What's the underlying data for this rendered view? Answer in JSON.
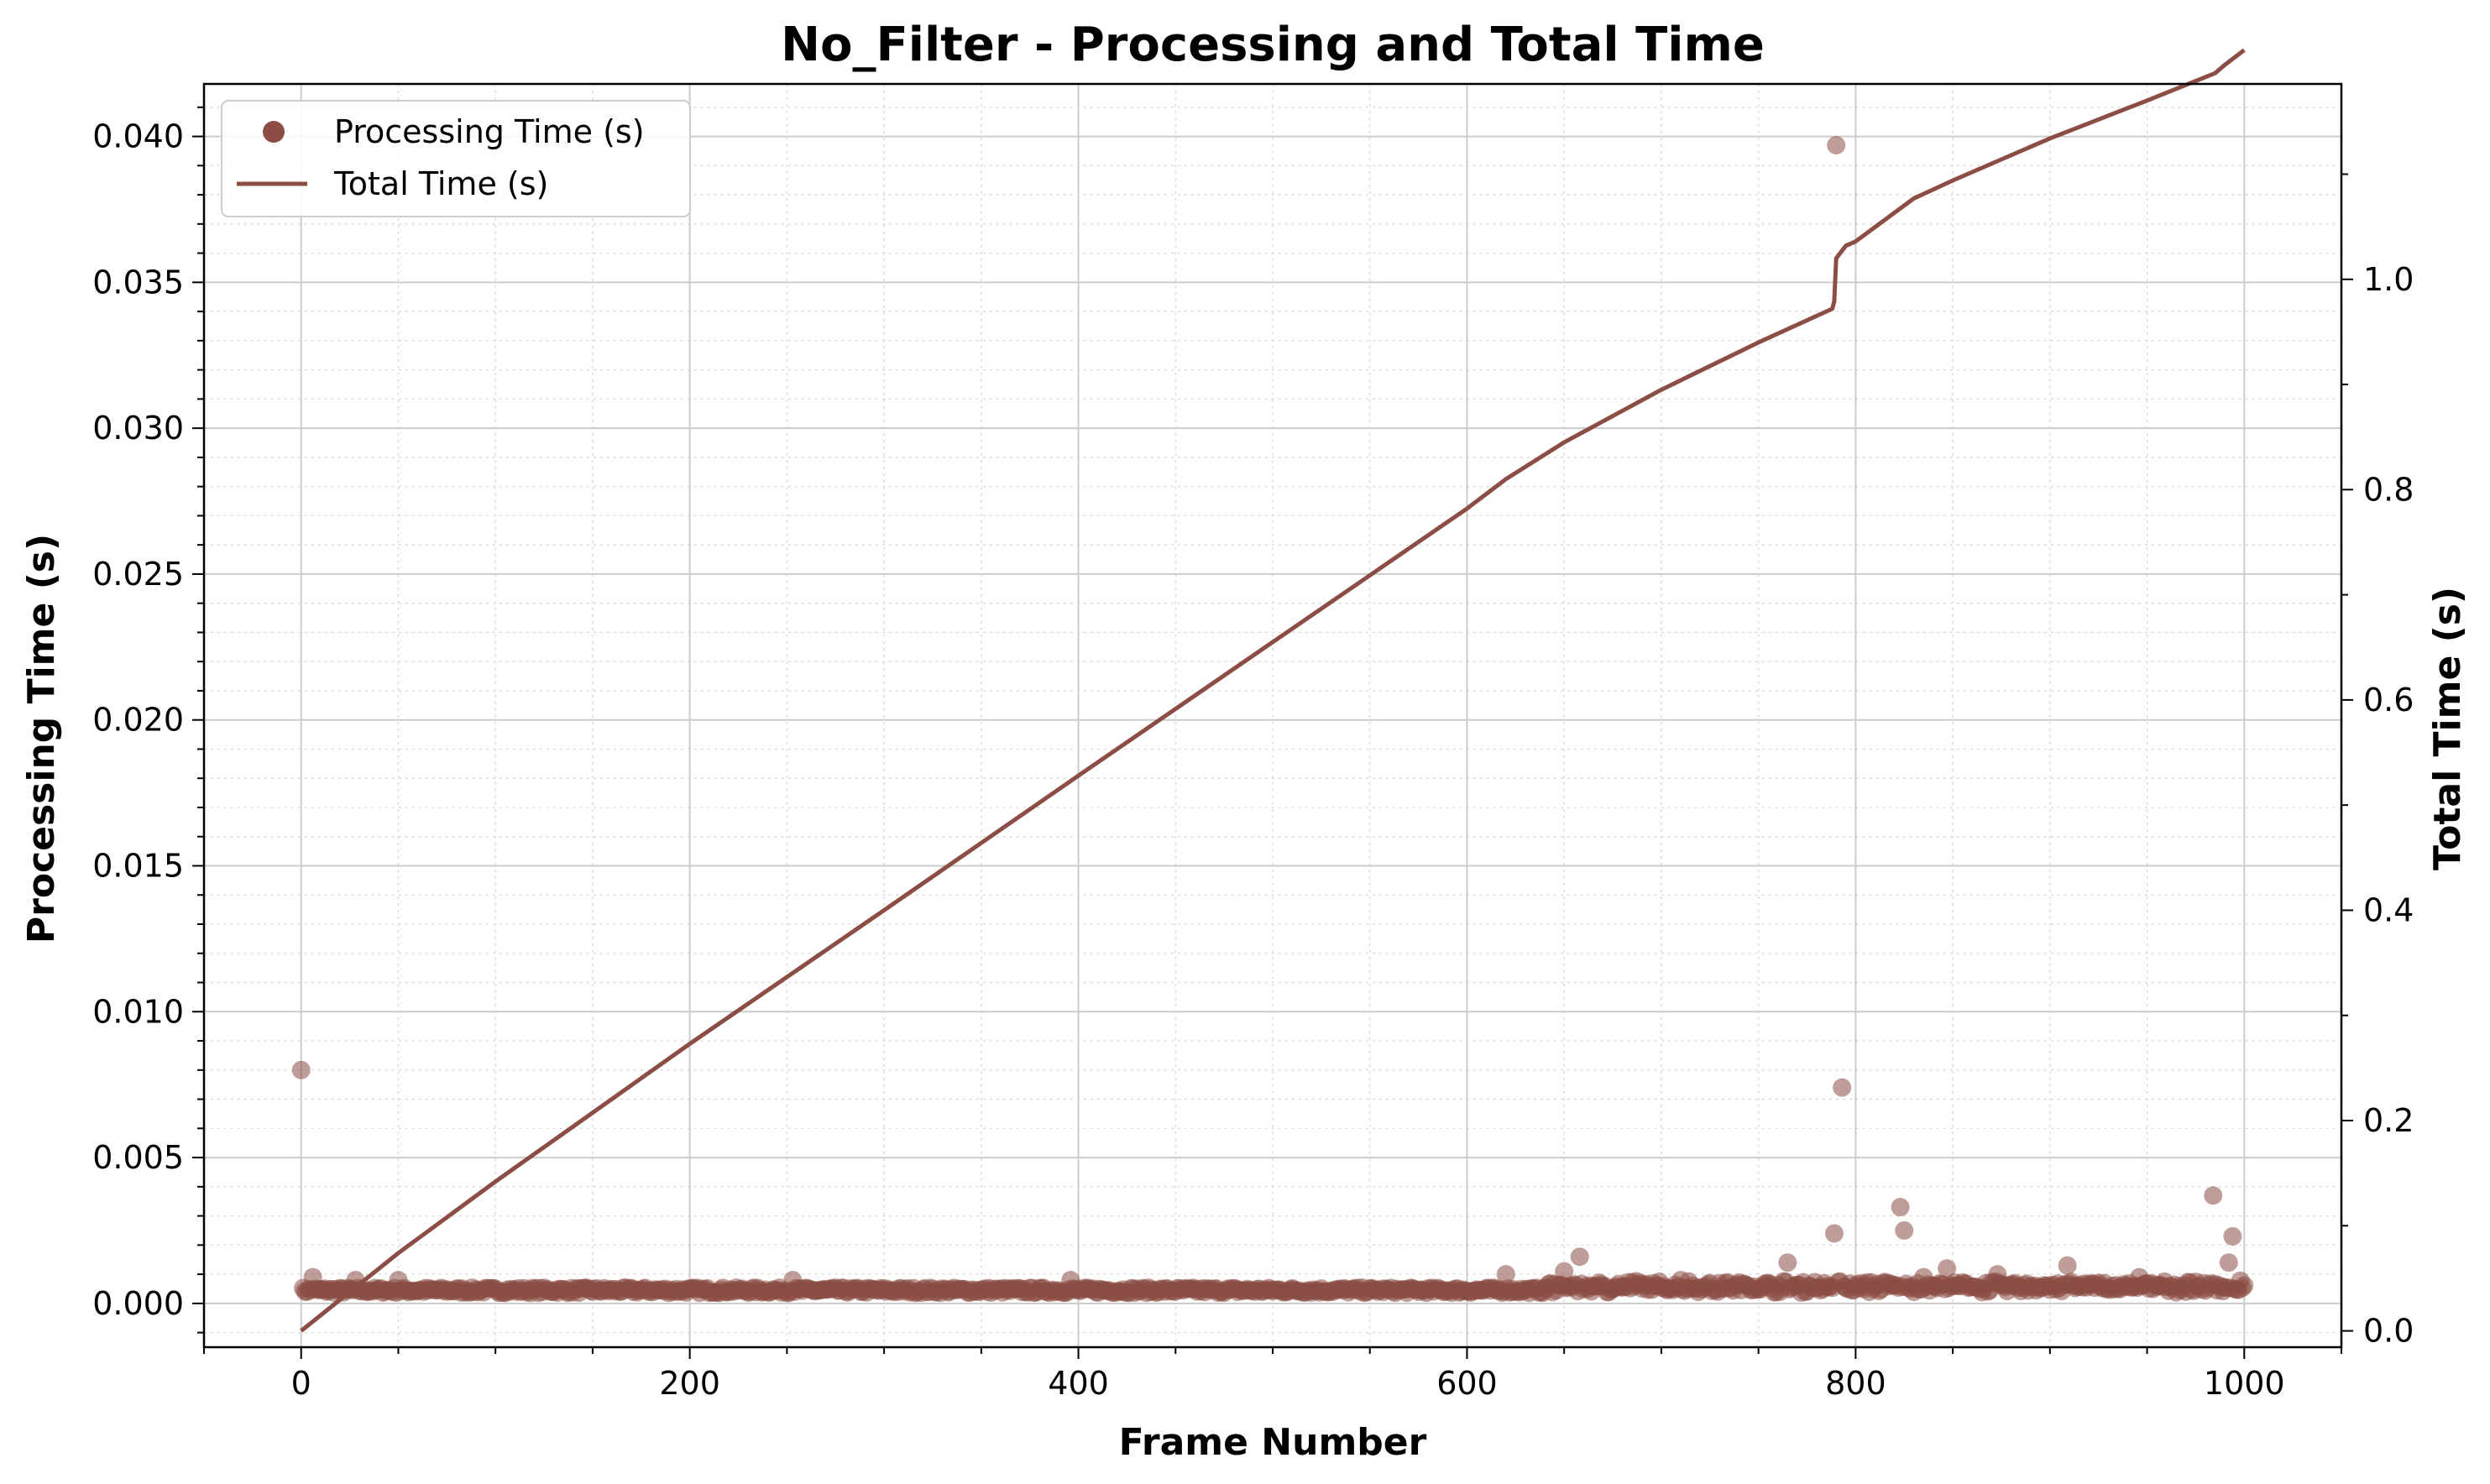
{
  "chart_data": {
    "type": "scatter+line",
    "title": "No_Filter - Processing and Total Time",
    "xlabel": "Frame Number",
    "ylabel": "Processing Time (s)",
    "y2label": "Total Time (s)",
    "xlim": [
      -50,
      1050
    ],
    "ylim": [
      -0.0015,
      0.0418
    ],
    "y2lim": [
      -0.0155,
      1.1858
    ],
    "xticks": [
      0,
      200,
      400,
      600,
      800,
      1000
    ],
    "xtick_labels": [
      "0",
      "200",
      "400",
      "600",
      "800",
      "1000"
    ],
    "yticks": [
      0.0,
      0.005,
      0.01,
      0.015,
      0.02,
      0.025,
      0.03,
      0.035,
      0.04
    ],
    "ytick_labels": [
      "0.000",
      "0.005",
      "0.010",
      "0.015",
      "0.020",
      "0.025",
      "0.030",
      "0.035",
      "0.040"
    ],
    "y2ticks": [
      0.0,
      0.2,
      0.4,
      0.6,
      0.8,
      1.0
    ],
    "y2tick_labels": [
      "0.0",
      "0.2",
      "0.4",
      "0.6",
      "0.8",
      "1.0"
    ],
    "grid": true,
    "legend_position": "top-left",
    "color": "#8b4d44",
    "series": [
      {
        "name": "Processing Time (s)",
        "kind": "scatter",
        "axis": "left",
        "baseline": 0.00045,
        "n_frames": 1001,
        "outliers": [
          [
            0,
            0.008
          ],
          [
            790,
            0.0397
          ],
          [
            793,
            0.0074
          ],
          [
            984,
            0.0037
          ],
          [
            823,
            0.0033
          ],
          [
            789,
            0.0024
          ],
          [
            825,
            0.0025
          ],
          [
            994,
            0.0023
          ],
          [
            658,
            0.0016
          ],
          [
            765,
            0.0014
          ],
          [
            909,
            0.0013
          ],
          [
            847,
            0.0012
          ],
          [
            992,
            0.0014
          ],
          [
            6,
            0.0009
          ],
          [
            620,
            0.001
          ],
          [
            396,
            0.0008
          ],
          [
            253,
            0.0008
          ],
          [
            50,
            0.0008
          ],
          [
            873,
            0.001
          ],
          [
            946,
            0.0009
          ],
          [
            710,
            0.0008
          ],
          [
            28,
            0.0008
          ],
          [
            650,
            0.0011
          ],
          [
            835,
            0.0009
          ]
        ]
      },
      {
        "name": "Total Time (s)",
        "kind": "line",
        "axis": "right",
        "points": [
          [
            0,
            0.0
          ],
          [
            50,
            0.074
          ],
          [
            100,
            0.142
          ],
          [
            200,
            0.273
          ],
          [
            300,
            0.4
          ],
          [
            400,
            0.528
          ],
          [
            500,
            0.655
          ],
          [
            600,
            0.782
          ],
          [
            620,
            0.81
          ],
          [
            650,
            0.845
          ],
          [
            700,
            0.895
          ],
          [
            750,
            0.94
          ],
          [
            788,
            0.972
          ],
          [
            789,
            0.979
          ],
          [
            790,
            1.02
          ],
          [
            795,
            1.032
          ],
          [
            800,
            1.036
          ],
          [
            830,
            1.077
          ],
          [
            850,
            1.094
          ],
          [
            900,
            1.134
          ],
          [
            950,
            1.17
          ],
          [
            985,
            1.196
          ],
          [
            990,
            1.204
          ],
          [
            1000,
            1.218
          ]
        ]
      }
    ]
  }
}
